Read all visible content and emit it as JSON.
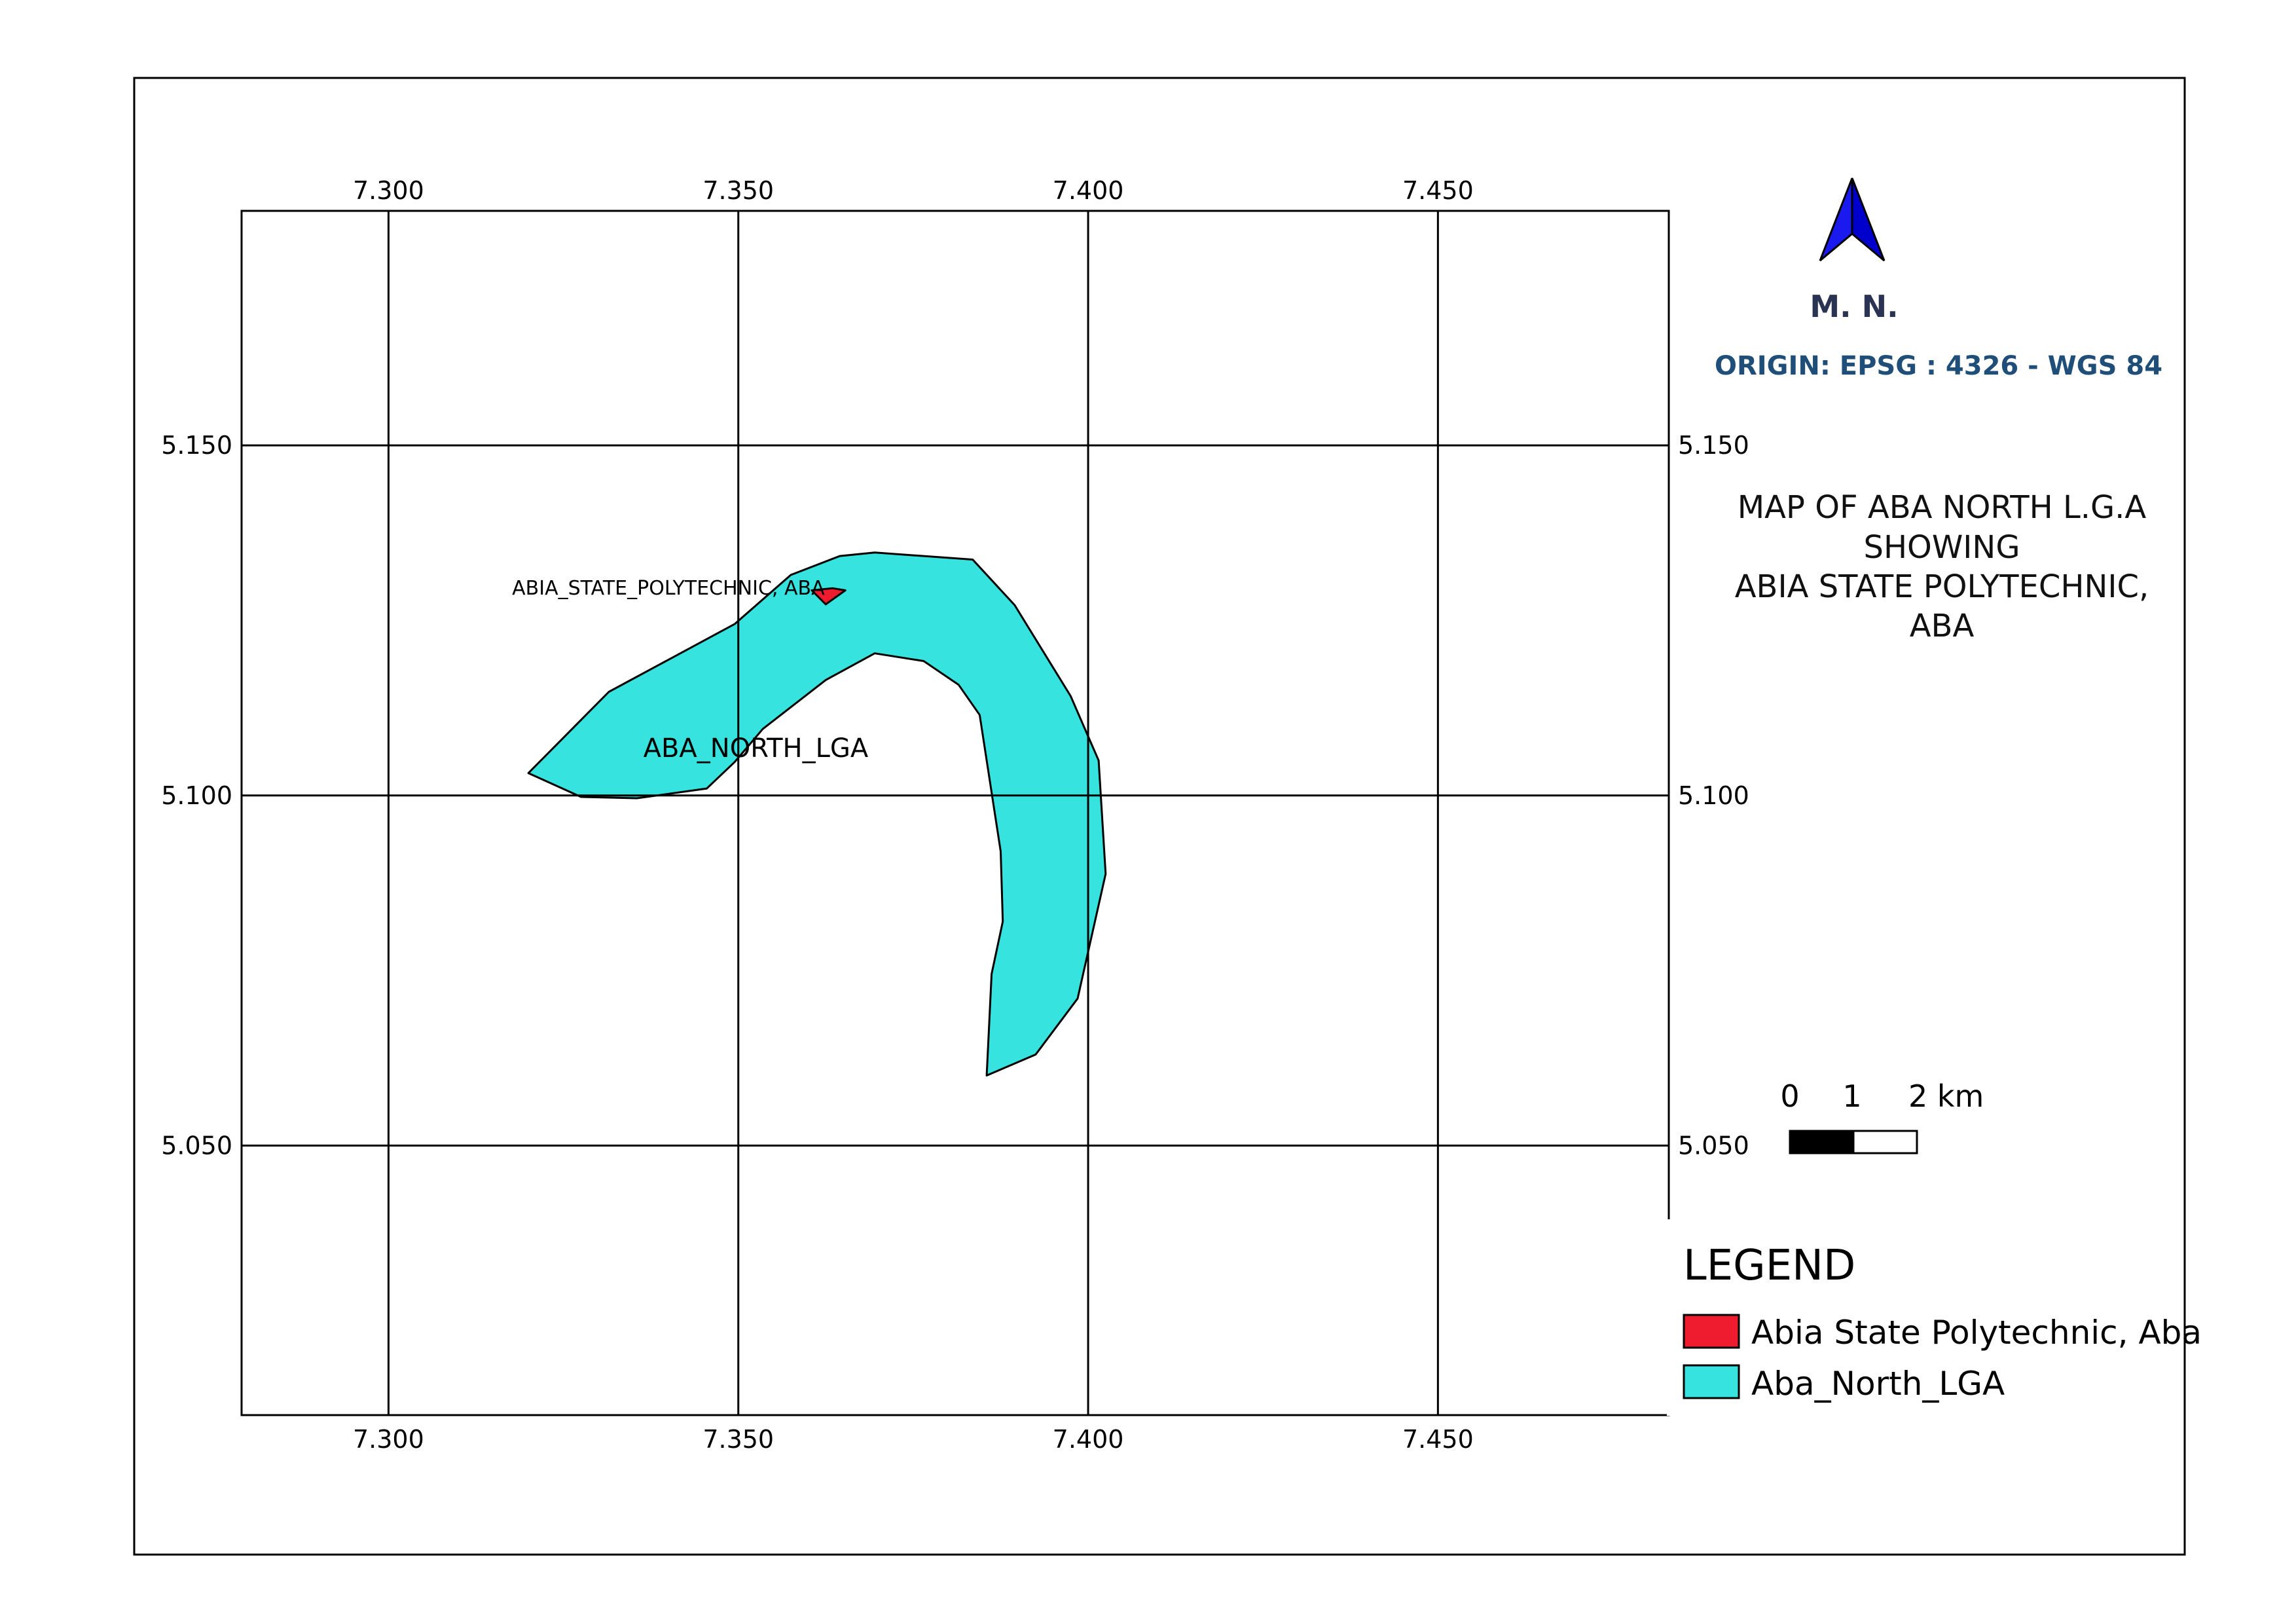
{
  "map": {
    "title_lines": [
      "MAP OF ABA NORTH L.G.A",
      "SHOWING",
      "ABIA STATE POLYTECHNIC,",
      "ABA"
    ],
    "north_arrow_label": "M. N.",
    "origin": "ORIGIN: EPSG : 4326 - WGS 84",
    "x_ticks": [
      "7.300",
      "7.350",
      "7.400",
      "7.450"
    ],
    "y_ticks": [
      "5.150",
      "5.100",
      "5.050"
    ],
    "x_tick_values": [
      7.3,
      7.35,
      7.4,
      7.45
    ],
    "y_tick_values": [
      5.15,
      5.1,
      5.05
    ],
    "extent": {
      "lon": [
        7.279,
        7.483
      ],
      "lat": [
        5.0115,
        5.1835
      ]
    },
    "scale_bar": {
      "labels": [
        "0",
        "1",
        "2 km"
      ]
    },
    "legend": {
      "title": "LEGEND",
      "items": [
        {
          "label": "Abia State Polytechnic, Aba",
          "color": "#ee1c2e"
        },
        {
          "label": "Aba_North_LGA",
          "color": "#37e3de"
        }
      ]
    },
    "features": [
      {
        "name": "Aba_North_LGA",
        "label": "ABA_NORTH_LGA",
        "fill": "#37e3de",
        "coords": [
          [
            7.32,
            5.1032
          ],
          [
            7.3315,
            5.1148
          ],
          [
            7.3495,
            5.1245
          ],
          [
            7.3575,
            5.1315
          ],
          [
            7.3645,
            5.1342
          ],
          [
            7.3695,
            5.1347
          ],
          [
            7.3835,
            5.1337
          ],
          [
            7.3895,
            5.1272
          ],
          [
            7.3975,
            5.1142
          ],
          [
            7.4015,
            5.105
          ],
          [
            7.4025,
            5.0888
          ],
          [
            7.3985,
            5.071
          ],
          [
            7.3925,
            5.063
          ],
          [
            7.3855,
            5.06
          ],
          [
            7.3862,
            5.0745
          ],
          [
            7.3878,
            5.082
          ],
          [
            7.3875,
            5.092
          ],
          [
            7.3845,
            5.1115
          ],
          [
            7.3815,
            5.1158
          ],
          [
            7.3765,
            5.1192
          ],
          [
            7.3695,
            5.1203
          ],
          [
            7.3625,
            5.1165
          ],
          [
            7.3535,
            5.1095
          ],
          [
            7.3495,
            5.1048
          ],
          [
            7.3455,
            5.101
          ],
          [
            7.3355,
            5.0996
          ],
          [
            7.3275,
            5.0998
          ]
        ]
      },
      {
        "name": "Abia State Polytechnic, Aba",
        "label": "ABIA_STATE_POLYTECHNIC, ABA",
        "fill": "#ee1c2e",
        "coords": [
          [
            7.3605,
            5.1293
          ],
          [
            7.3625,
            5.1273
          ],
          [
            7.3653,
            5.1293
          ],
          [
            7.3635,
            5.1296
          ]
        ]
      }
    ]
  }
}
